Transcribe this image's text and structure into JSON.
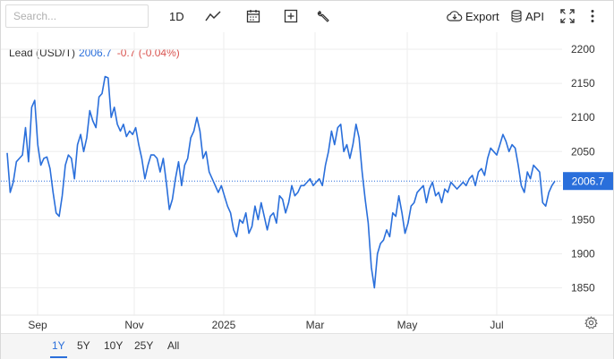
{
  "toolbar": {
    "search_placeholder": "Search...",
    "interval_label": "1D",
    "export_label": "Export",
    "api_label": "API"
  },
  "header": {
    "instrument": "Lead (USD/T)",
    "price": "2006.7",
    "change": "-0.7 (-0.04%)"
  },
  "ranges": [
    "1Y",
    "5Y",
    "10Y",
    "25Y",
    "All"
  ],
  "active_range": "1Y",
  "colors": {
    "line": "#2a6fdb",
    "down": "#d9534f",
    "grid": "#ededed",
    "badge": "#2a6fdb"
  },
  "chart_data": {
    "type": "line",
    "xlabel": "",
    "ylabel": "",
    "x_tick_labels": [
      "Sep",
      "Nov",
      "2025",
      "Mar",
      "May",
      "Jul"
    ],
    "y_ticks": [
      1850,
      1900,
      1950,
      2000,
      2050,
      2100,
      2150,
      2200
    ],
    "ylim": [
      1810,
      2225
    ],
    "last_value_label": "2006.7",
    "last_value": 2006.7,
    "grid": true,
    "series": [
      {
        "values": [
          2048,
          1990,
          2005,
          2035,
          2040,
          2045,
          2085,
          2035,
          2115,
          2125,
          2060,
          2030,
          2040,
          2042,
          2025,
          1990,
          1960,
          1955,
          1985,
          2030,
          2045,
          2040,
          2010,
          2060,
          2075,
          2050,
          2070,
          2110,
          2095,
          2085,
          2130,
          2135,
          2160,
          2158,
          2100,
          2115,
          2090,
          2080,
          2090,
          2072,
          2080,
          2075,
          2085,
          2060,
          2040,
          2010,
          2030,
          2045,
          2045,
          2040,
          2020,
          2040,
          2005,
          1965,
          1980,
          2010,
          2035,
          2000,
          2030,
          2040,
          2070,
          2080,
          2100,
          2080,
          2040,
          2050,
          2020,
          2010,
          2000,
          1990,
          2000,
          1985,
          1970,
          1960,
          1935,
          1925,
          1950,
          1945,
          1960,
          1930,
          1940,
          1970,
          1950,
          1975,
          1955,
          1935,
          1955,
          1960,
          1945,
          1985,
          1980,
          1960,
          1975,
          2000,
          1985,
          1990,
          2000,
          2000,
          2005,
          2010,
          2000,
          2005,
          2010,
          2000,
          2030,
          2050,
          2080,
          2060,
          2085,
          2090,
          2050,
          2060,
          2040,
          2060,
          2090,
          2070,
          2020,
          1980,
          1945,
          1880,
          1850,
          1900,
          1915,
          1920,
          1935,
          1925,
          1960,
          1955,
          1985,
          1960,
          1930,
          1945,
          1970,
          1975,
          1990,
          1995,
          2000,
          1975,
          1995,
          2005,
          1985,
          1990,
          1975,
          1995,
          1990,
          2005,
          2000,
          1995,
          2000,
          2005,
          2000,
          2010,
          2015,
          2000,
          2020,
          2025,
          2015,
          2040,
          2055,
          2050,
          2045,
          2060,
          2075,
          2065,
          2050,
          2060,
          2055,
          2030,
          2000,
          1990,
          2020,
          2010,
          2030,
          2025,
          2020,
          1975,
          1970,
          1990,
          2000,
          2006.7
        ]
      }
    ]
  }
}
